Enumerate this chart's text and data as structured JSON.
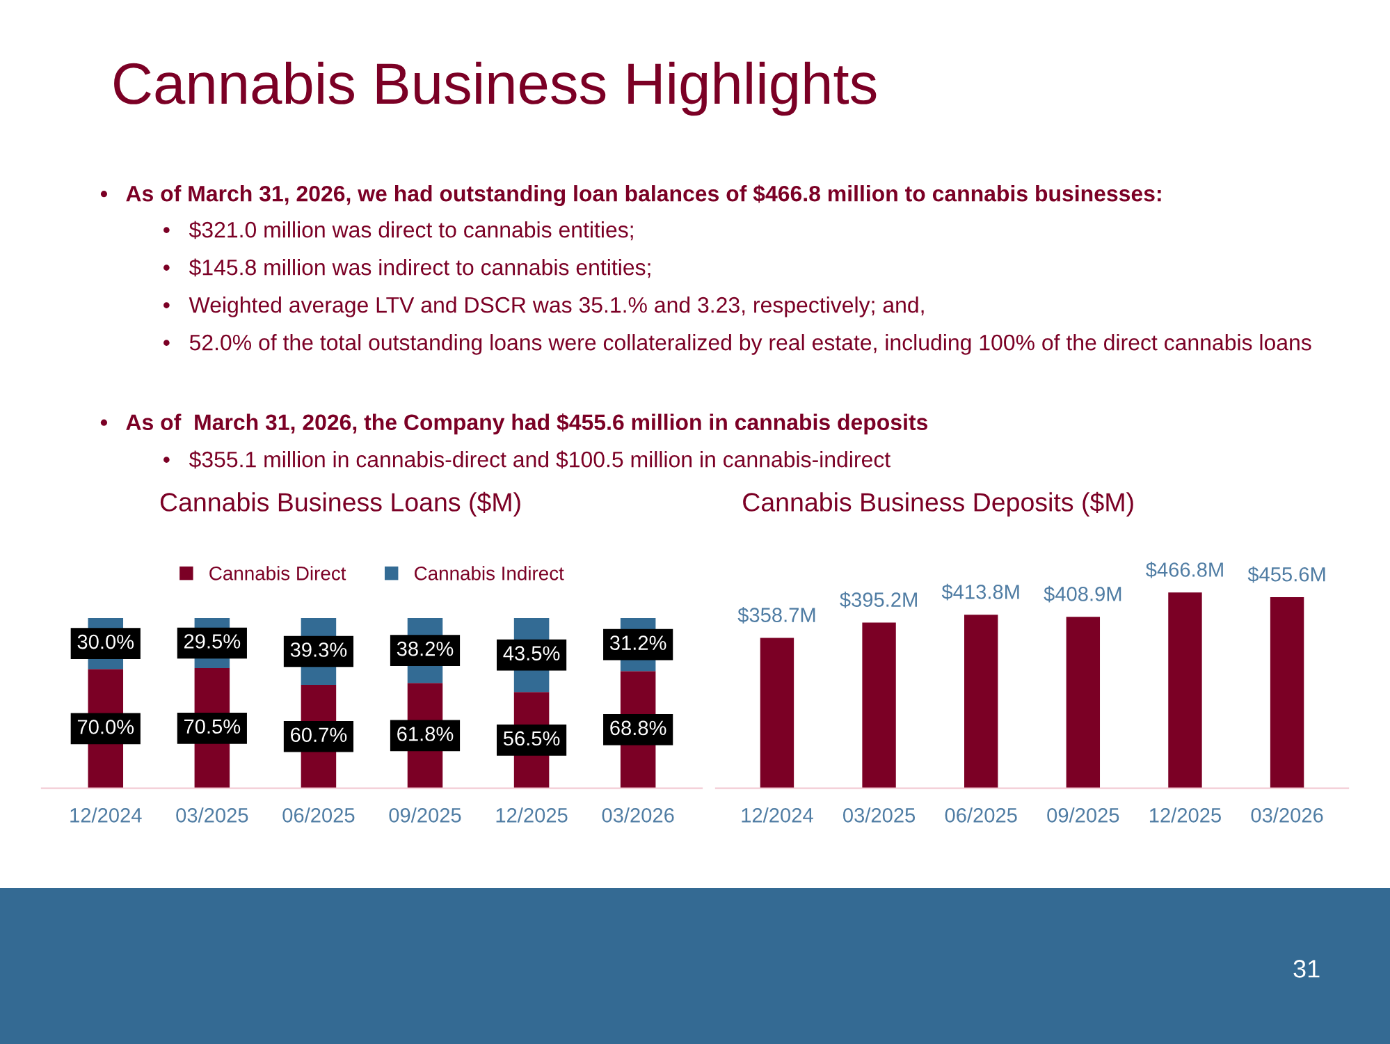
{
  "chart_data": [
    {
      "type": "bar",
      "title": "Cannabis Business Loans ($M)",
      "stacked": true,
      "legend": "top",
      "tick_labels": "x",
      "annotations": [
        "Cannabis Business Highlights",
        "•   As of March 31, 2026, we had outstanding loan balances of $466.8 million to cannabis businesses:",
        "•   $321.0 million was direct to cannabis entities;",
        "•   $145.8 million was indirect to cannabis entities;",
        "•   Weighted average LTV and DSCR was 35.1.% and 3.23, respectively; and,",
        "•   52.0% of the total outstanding loans were collateralized by real estate, including 100% of the direct cannabis loans",
        "•   As of  March 31, 2026, the Company had $455.6 million in cannabis deposits",
        "•   $355.1 million in cannabis-direct and $100.5 million in cannabis-indirect",
        "31"
      ],
      "categories": [
        "12/2024",
        "03/2025",
        "06/2025",
        "09/2025",
        "12/2025",
        "03/2026"
      ],
      "series": [
        {
          "name": "Cannabis Direct",
          "color": "#7b0025",
          "values": [
            70.0,
            70.5,
            60.7,
            61.8,
            56.5,
            68.8
          ],
          "value_labels": [
            "70.0%",
            "70.5%",
            "60.7%",
            "61.8%",
            "56.5%",
            "68.8%"
          ]
        },
        {
          "name": "Cannabis Indirect",
          "color": "#336b94",
          "values": [
            30.0,
            29.5,
            39.3,
            38.2,
            43.5,
            31.2
          ],
          "value_labels": [
            "30.0%",
            "29.5%",
            "39.3%",
            "38.2%",
            "43.5%",
            "31.2%"
          ]
        }
      ]
    },
    {
      "type": "bar",
      "title": "Cannabis Business Deposits ($M)",
      "tick_labels": "x",
      "categories": [
        "12/2024",
        "03/2025",
        "06/2025",
        "09/2025",
        "12/2025",
        "03/2026"
      ],
      "series": [
        {
          "color": "#7b0025",
          "values": [
            358.7,
            395.2,
            413.8,
            408.9,
            466.8,
            455.6
          ],
          "value_labels": [
            "$358.7M",
            "$395.2M",
            "$413.8M",
            "$408.9M",
            "$466.8M",
            "$455.6M"
          ]
        }
      ]
    }
  ]
}
